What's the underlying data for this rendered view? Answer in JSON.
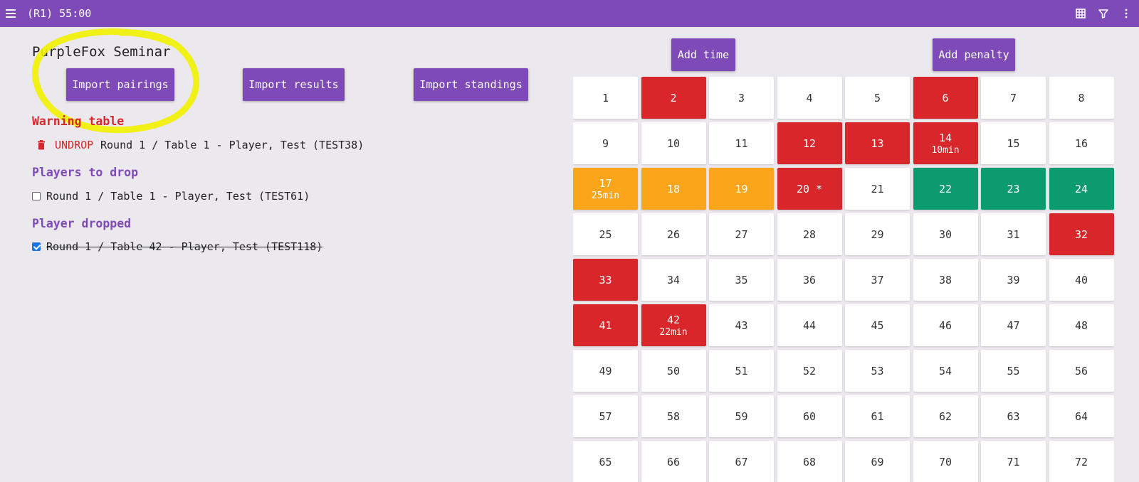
{
  "topbar": {
    "timer": "(R1) 55:00",
    "menu_icon": "menu-icon",
    "right_icons": [
      "grid-icon",
      "filter-icon",
      "more-vert-icon"
    ]
  },
  "event": {
    "title": "PurpleFox Seminar"
  },
  "actions": {
    "import_pairings": "Import pairings",
    "import_results": "Import results",
    "import_standings": "Import standings",
    "add_time": "Add time",
    "add_penalty": "Add penalty"
  },
  "warning": {
    "heading": "Warning table",
    "undrop_label": "UNDROP",
    "text": "Round 1 / Table 1 - Player, Test (TEST38)"
  },
  "to_drop": {
    "heading": "Players to drop",
    "items": [
      {
        "text": "Round 1 / Table 1 - Player, Test (TEST61)",
        "checked": false
      }
    ]
  },
  "dropped": {
    "heading": "Player dropped",
    "items": [
      {
        "text": "Round 1 / Table 42 - Player, Test (TEST118)",
        "checked": true
      }
    ]
  },
  "colors": {
    "brand": "#7e4ab7",
    "warning_red": "#d9262b",
    "late": "#fba51a",
    "done": "#0b9b6c",
    "highlight": "#f2f200"
  },
  "tables": [
    {
      "n": "1",
      "s": "empty"
    },
    {
      "n": "2",
      "s": "red"
    },
    {
      "n": "3",
      "s": "empty"
    },
    {
      "n": "4",
      "s": "empty"
    },
    {
      "n": "5",
      "s": "empty"
    },
    {
      "n": "6",
      "s": "red"
    },
    {
      "n": "7",
      "s": "empty"
    },
    {
      "n": "8",
      "s": "empty"
    },
    {
      "n": "9",
      "s": "empty"
    },
    {
      "n": "10",
      "s": "empty"
    },
    {
      "n": "11",
      "s": "empty"
    },
    {
      "n": "12",
      "s": "red"
    },
    {
      "n": "13",
      "s": "red"
    },
    {
      "n": "14",
      "s": "red",
      "extra": "10min"
    },
    {
      "n": "15",
      "s": "empty"
    },
    {
      "n": "16",
      "s": "empty"
    },
    {
      "n": "17",
      "s": "orange",
      "extra": "25min"
    },
    {
      "n": "18",
      "s": "orange"
    },
    {
      "n": "19",
      "s": "orange"
    },
    {
      "n": "20 *",
      "s": "red"
    },
    {
      "n": "21",
      "s": "empty"
    },
    {
      "n": "22",
      "s": "green"
    },
    {
      "n": "23",
      "s": "green"
    },
    {
      "n": "24",
      "s": "green"
    },
    {
      "n": "25",
      "s": "empty"
    },
    {
      "n": "26",
      "s": "empty"
    },
    {
      "n": "27",
      "s": "empty"
    },
    {
      "n": "28",
      "s": "empty"
    },
    {
      "n": "29",
      "s": "empty"
    },
    {
      "n": "30",
      "s": "empty"
    },
    {
      "n": "31",
      "s": "empty"
    },
    {
      "n": "32",
      "s": "red"
    },
    {
      "n": "33",
      "s": "red"
    },
    {
      "n": "34",
      "s": "empty"
    },
    {
      "n": "35",
      "s": "empty"
    },
    {
      "n": "36",
      "s": "empty"
    },
    {
      "n": "37",
      "s": "empty"
    },
    {
      "n": "38",
      "s": "empty"
    },
    {
      "n": "39",
      "s": "empty"
    },
    {
      "n": "40",
      "s": "empty"
    },
    {
      "n": "41",
      "s": "red"
    },
    {
      "n": "42",
      "s": "red",
      "extra": "22min"
    },
    {
      "n": "43",
      "s": "empty"
    },
    {
      "n": "44",
      "s": "empty"
    },
    {
      "n": "45",
      "s": "empty"
    },
    {
      "n": "46",
      "s": "empty"
    },
    {
      "n": "47",
      "s": "empty"
    },
    {
      "n": "48",
      "s": "empty"
    },
    {
      "n": "49",
      "s": "empty"
    },
    {
      "n": "50",
      "s": "empty"
    },
    {
      "n": "51",
      "s": "empty"
    },
    {
      "n": "52",
      "s": "empty"
    },
    {
      "n": "53",
      "s": "empty"
    },
    {
      "n": "54",
      "s": "empty"
    },
    {
      "n": "55",
      "s": "empty"
    },
    {
      "n": "56",
      "s": "empty"
    },
    {
      "n": "57",
      "s": "empty"
    },
    {
      "n": "58",
      "s": "empty"
    },
    {
      "n": "59",
      "s": "empty"
    },
    {
      "n": "60",
      "s": "empty"
    },
    {
      "n": "61",
      "s": "empty"
    },
    {
      "n": "62",
      "s": "empty"
    },
    {
      "n": "63",
      "s": "empty"
    },
    {
      "n": "64",
      "s": "empty"
    },
    {
      "n": "65",
      "s": "empty"
    },
    {
      "n": "66",
      "s": "empty"
    },
    {
      "n": "67",
      "s": "empty"
    },
    {
      "n": "68",
      "s": "empty"
    },
    {
      "n": "69",
      "s": "empty"
    },
    {
      "n": "70",
      "s": "empty"
    },
    {
      "n": "71",
      "s": "empty"
    },
    {
      "n": "72",
      "s": "empty"
    }
  ]
}
